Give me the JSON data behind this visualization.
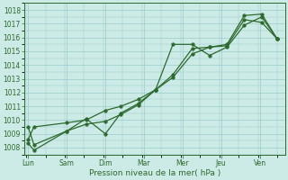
{
  "xlabel": "Pression niveau de la mer( hPa )",
  "background_color": "#cceae6",
  "grid_color": "#99cccc",
  "line_color": "#2d6a2d",
  "x_labels": [
    "Lun",
    "Sam",
    "Dim",
    "Mar",
    "Mer",
    "Jeu",
    "Ven"
  ],
  "ylim": [
    1007.5,
    1018.5
  ],
  "yticks": [
    1008,
    1009,
    1010,
    1011,
    1012,
    1013,
    1014,
    1015,
    1016,
    1017,
    1018
  ],
  "font_color": "#2d6a2d",
  "marker_size": 2.5,
  "line_width": 0.9,
  "line1_x": [
    0.05,
    0.2,
    1.05,
    1.55,
    2.05,
    2.45,
    2.9,
    3.35,
    3.8,
    4.3,
    4.75,
    5.2,
    5.65,
    6.1,
    6.5
  ],
  "line1_y": [
    1009.5,
    1008.2,
    1009.2,
    1010.1,
    1009.0,
    1010.5,
    1011.2,
    1012.2,
    1015.5,
    1015.5,
    1014.7,
    1015.3,
    1016.9,
    1017.5,
    1015.9
  ],
  "line2_x": [
    0.05,
    0.2,
    1.05,
    1.55,
    2.05,
    2.45,
    2.9,
    3.35,
    3.8,
    4.3,
    4.75,
    5.2,
    5.65,
    6.1,
    6.5
  ],
  "line2_y": [
    1008.3,
    1007.8,
    1009.2,
    1009.7,
    1009.9,
    1010.4,
    1011.1,
    1012.2,
    1013.1,
    1014.8,
    1015.3,
    1015.5,
    1017.6,
    1017.7,
    1015.9
  ],
  "line3_x": [
    0.05,
    0.2,
    1.05,
    1.55,
    2.05,
    2.45,
    2.9,
    3.35,
    3.8,
    4.3,
    4.75,
    5.2,
    5.65,
    6.1,
    6.5
  ],
  "line3_y": [
    1008.6,
    1009.5,
    1009.8,
    1010.0,
    1010.7,
    1011.0,
    1011.5,
    1012.2,
    1013.3,
    1015.2,
    1015.3,
    1015.4,
    1017.3,
    1017.1,
    1015.9
  ]
}
